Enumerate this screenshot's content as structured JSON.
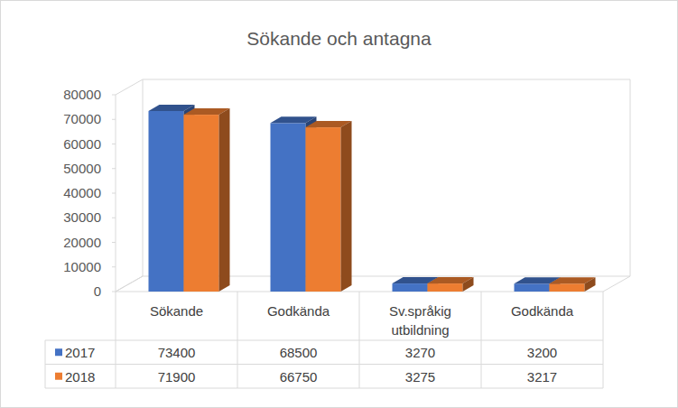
{
  "chart_data": {
    "type": "bar",
    "title": "Sökande och antagna",
    "categories": [
      "Sökande",
      "Godkända",
      "Sv.språkig utbildning",
      "Godkända"
    ],
    "series": [
      {
        "name": "2017",
        "color": "#4472c4",
        "values": [
          73400,
          68500,
          3270,
          3200
        ]
      },
      {
        "name": "2018",
        "color": "#ed7d31",
        "values": [
          71900,
          66750,
          3275,
          3217
        ]
      }
    ],
    "ylim": [
      0,
      80000
    ],
    "yticks": [
      0,
      10000,
      20000,
      30000,
      40000,
      50000,
      60000,
      70000,
      80000
    ],
    "grid": false
  }
}
